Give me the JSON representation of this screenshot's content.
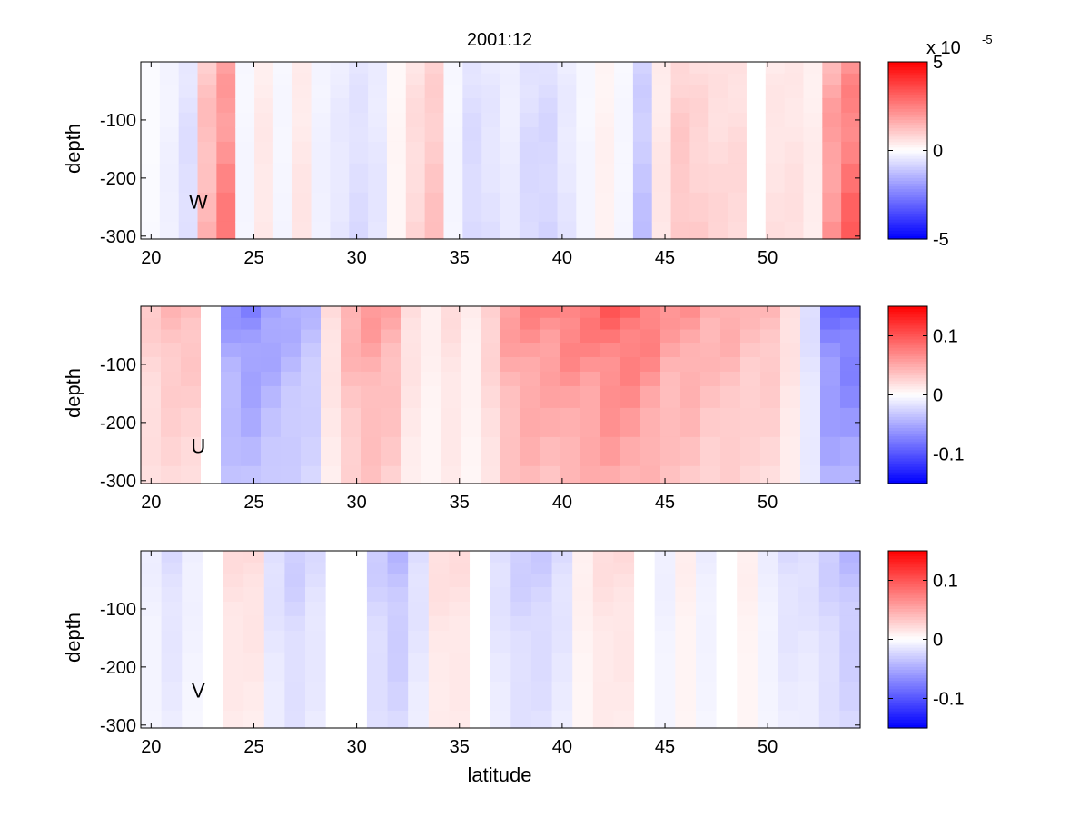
{
  "figure": {
    "title": "2001:12",
    "xlabel": "latitude"
  },
  "chart_data": [
    {
      "type": "heatmap",
      "panel_label": "W",
      "ylabel": "depth",
      "xlim": [
        19.5,
        54.5
      ],
      "ylim": [
        -305,
        0
      ],
      "xticks": [
        20,
        25,
        30,
        35,
        40,
        45,
        50
      ],
      "yticks": [
        -100,
        -200,
        -300
      ],
      "depth_levels": [
        -10,
        -30,
        -50,
        -75,
        -100,
        -125,
        -150,
        -200,
        -250,
        -300
      ],
      "colorbar": {
        "limits": [
          -5,
          5
        ],
        "ticks": [
          -5,
          0,
          5
        ],
        "scale_label": "x 10",
        "scale_exponent": "-5"
      },
      "columns": [
        -0.1,
        -0.3,
        -0.7,
        1.5,
        2.5,
        -0.2,
        0.5,
        -0.2,
        0.5,
        -0.3,
        -0.5,
        -0.7,
        -0.5,
        0.2,
        0.8,
        1.2,
        -0.2,
        -0.8,
        -0.6,
        -0.4,
        -0.8,
        -0.9,
        -0.5,
        -0.2,
        0.3,
        -0.2,
        -1.2,
        0.5,
        1.2,
        1.0,
        0.8,
        0.8,
        0.0,
        0.6,
        0.6,
        0.4,
        2.2,
        3.0
      ],
      "color_scale": "blue-white-red"
    },
    {
      "type": "heatmap",
      "panel_label": "U",
      "ylabel": "depth",
      "xlim": [
        19.5,
        54.5
      ],
      "ylim": [
        -305,
        0
      ],
      "xticks": [
        20,
        25,
        30,
        35,
        40,
        45,
        50
      ],
      "yticks": [
        -100,
        -200,
        -300
      ],
      "depth_levels": [
        -10,
        -30,
        -50,
        -75,
        -100,
        -125,
        -150,
        -200,
        -250,
        -300
      ],
      "colorbar": {
        "limits": [
          -0.15,
          0.15
        ],
        "ticks": [
          -0.1,
          0,
          0.1
        ]
      },
      "columns": [
        0.03,
        0.04,
        0.04,
        0.0,
        -0.06,
        -0.07,
        -0.06,
        -0.05,
        -0.04,
        0.02,
        0.05,
        0.06,
        0.05,
        0.02,
        0.01,
        0.02,
        0.01,
        0.03,
        0.06,
        0.07,
        0.07,
        0.08,
        0.08,
        0.09,
        0.09,
        0.08,
        0.06,
        0.06,
        0.05,
        0.05,
        0.04,
        0.04,
        0.02,
        -0.02,
        -0.08,
        -0.09
      ],
      "color_scale": "blue-white-red"
    },
    {
      "type": "heatmap",
      "panel_label": "V",
      "ylabel": "depth",
      "xlabel": "latitude",
      "xlim": [
        19.5,
        54.5
      ],
      "ylim": [
        -305,
        0
      ],
      "xticks": [
        20,
        25,
        30,
        35,
        40,
        45,
        50
      ],
      "yticks": [
        -100,
        -200,
        -300
      ],
      "depth_levels": [
        -10,
        -30,
        -50,
        -75,
        -100,
        -125,
        -150,
        -200,
        -250,
        -300
      ],
      "colorbar": {
        "limits": [
          -0.15,
          0.15
        ],
        "ticks": [
          -0.1,
          0,
          0.1
        ]
      },
      "columns": [
        -0.01,
        -0.02,
        -0.01,
        0.0,
        0.02,
        0.02,
        -0.02,
        -0.03,
        -0.02,
        0.0,
        0.0,
        -0.03,
        -0.04,
        -0.02,
        0.02,
        0.02,
        0.0,
        -0.02,
        -0.03,
        -0.03,
        -0.02,
        0.01,
        0.02,
        0.02,
        0.0,
        -0.01,
        0.01,
        -0.01,
        0.0,
        0.01,
        -0.01,
        -0.02,
        -0.02,
        -0.03,
        -0.04
      ],
      "color_scale": "blue-white-red"
    }
  ]
}
